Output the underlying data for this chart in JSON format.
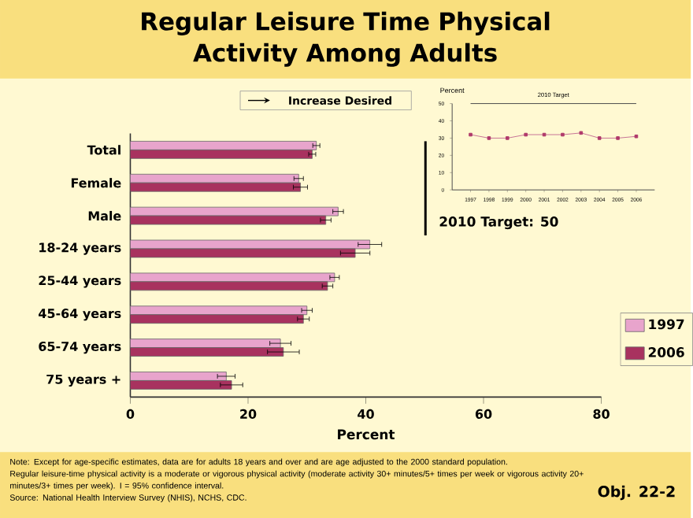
{
  "chart_data": [
    {
      "type": "bar",
      "orientation": "horizontal",
      "title": "Regular Leisure Time Physical Activity Among Adults",
      "xlabel": "Percent",
      "categories": [
        "Total",
        "Female",
        "Male",
        "18-24 years",
        "25-44 years",
        "45-64 years",
        "65-74 years",
        "75 years +"
      ],
      "series": [
        {
          "name": "1997",
          "color": "#e8a4cc",
          "values": [
            31.6,
            28.6,
            35.3,
            40.7,
            34.7,
            30.0,
            25.5,
            16.3
          ],
          "errors": [
            0.6,
            0.8,
            0.9,
            2.0,
            0.8,
            0.9,
            1.8,
            1.5
          ]
        },
        {
          "name": "2006",
          "color": "#a8325f",
          "values": [
            30.9,
            28.9,
            33.2,
            38.2,
            33.5,
            29.4,
            26.0,
            17.2
          ],
          "errors": [
            0.6,
            1.2,
            0.9,
            2.5,
            0.9,
            1.0,
            2.7,
            1.9
          ]
        }
      ],
      "xlim": [
        0,
        80
      ],
      "xticks": [
        0,
        20,
        40,
        60,
        80
      ],
      "legend": "right",
      "annotations": [
        "Increase Desired",
        "Note: Except for age-specific estimates, data are for adults 18 years and over and are age adjusted to the 2000 standard population.",
        "Regular leisure-time physical activity is a moderate or vigorous physical activity (moderate activity 30+ minutes/5+ times per week or vigorous activity 20+ minutes/3+ times per week). I = 95% confidence interval.",
        "Source: National Health Interview Survey (NHIS), NCHS, CDC.",
        "Obj. 22-2"
      ]
    },
    {
      "type": "line",
      "ylabel": "Percent",
      "x": [
        1997,
        1998,
        1999,
        2000,
        2001,
        2002,
        2003,
        2004,
        2005,
        2006
      ],
      "series": [
        {
          "color": "#b03a6a",
          "values": [
            32,
            30,
            30,
            32,
            32,
            32,
            33,
            30,
            30,
            31
          ]
        }
      ],
      "marker": "square",
      "xlim": [
        1996,
        2007
      ],
      "xticks": [
        1997,
        1998,
        1999,
        2000,
        2001,
        2002,
        2003,
        2004,
        2005,
        2006
      ],
      "ylim": [
        0,
        50
      ],
      "yticks": [
        0,
        10,
        20,
        30,
        40,
        50
      ],
      "ref_lines": [
        {
          "axis": "y",
          "value": 50,
          "label": "2010 Target"
        }
      ],
      "annotations": [
        "2010 Target: 50"
      ]
    }
  ]
}
